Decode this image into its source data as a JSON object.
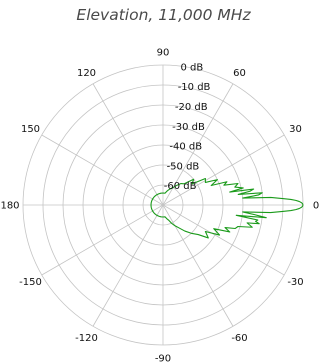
{
  "title": "Elevation, 11,000 MHz",
  "chart_data": {
    "type": "polar",
    "title": "Elevation, 11,000 MHz",
    "angular_ticks": [
      "90",
      "60",
      "30",
      "0",
      "-30",
      "-60",
      "-90",
      "-120",
      "-150",
      "180",
      "150",
      "120"
    ],
    "angular_tick_values_deg": [
      90,
      60,
      30,
      0,
      -30,
      -60,
      -90,
      -120,
      -150,
      180,
      150,
      120
    ],
    "radial_ticks": [
      "0 dB",
      "-10 dB",
      "-20 dB",
      "-30 dB",
      "-40 dB",
      "-50 dB",
      "-60 dB"
    ],
    "radial_tick_values_db": [
      0,
      -10,
      -20,
      -30,
      -40,
      -50,
      -60
    ],
    "rlim_db": [
      -70,
      0
    ],
    "series": [
      {
        "color": "#1a9a1a",
        "angle_deg": [
          0,
          0.5,
          1,
          1.5,
          2,
          2.5,
          3,
          4,
          5,
          6,
          7,
          8,
          9,
          10,
          11,
          12,
          14,
          16,
          18,
          20,
          22,
          25,
          28,
          32,
          36,
          40,
          45,
          50,
          55,
          60,
          65,
          70,
          75,
          80,
          90,
          100,
          110,
          120,
          130,
          140,
          150,
          160,
          170,
          180,
          190,
          200,
          210,
          220,
          230,
          240,
          250,
          260,
          270,
          280,
          285,
          290,
          295,
          300,
          305,
          310,
          315,
          320,
          324,
          328,
          332,
          335,
          338,
          340,
          342,
          344,
          346,
          348,
          349,
          350,
          351,
          352,
          353,
          354,
          355,
          356,
          357,
          357.5,
          358,
          358.5,
          359,
          359.5
        ],
        "gain_db": [
          0,
          -0.2,
          -0.8,
          -1.9,
          -3.6,
          -6,
          -9.5,
          -16,
          -30,
          -22,
          -20,
          -32,
          -26,
          -24,
          -36,
          -29,
          -33,
          -31,
          -38,
          -36,
          -44,
          -40,
          -46,
          -45,
          -52,
          -50,
          -55,
          -56,
          -58,
          -60,
          -61,
          -62,
          -63,
          -64,
          -64,
          -64,
          -64,
          -64,
          -64,
          -64,
          -64,
          -64,
          -64,
          -64,
          -64,
          -64,
          -64,
          -64,
          -64,
          -64,
          -64,
          -64,
          -64,
          -64,
          -63,
          -62,
          -60,
          -58,
          -56,
          -53,
          -50,
          -47,
          -42,
          -45,
          -38,
          -42,
          -34,
          -37,
          -32,
          -31,
          -24,
          -27,
          -21,
          -23,
          -22,
          -33,
          -18,
          -24,
          -30,
          -16,
          -9.5,
          -6,
          -3.6,
          -1.9,
          -0.8,
          -0.2
        ]
      }
    ]
  }
}
